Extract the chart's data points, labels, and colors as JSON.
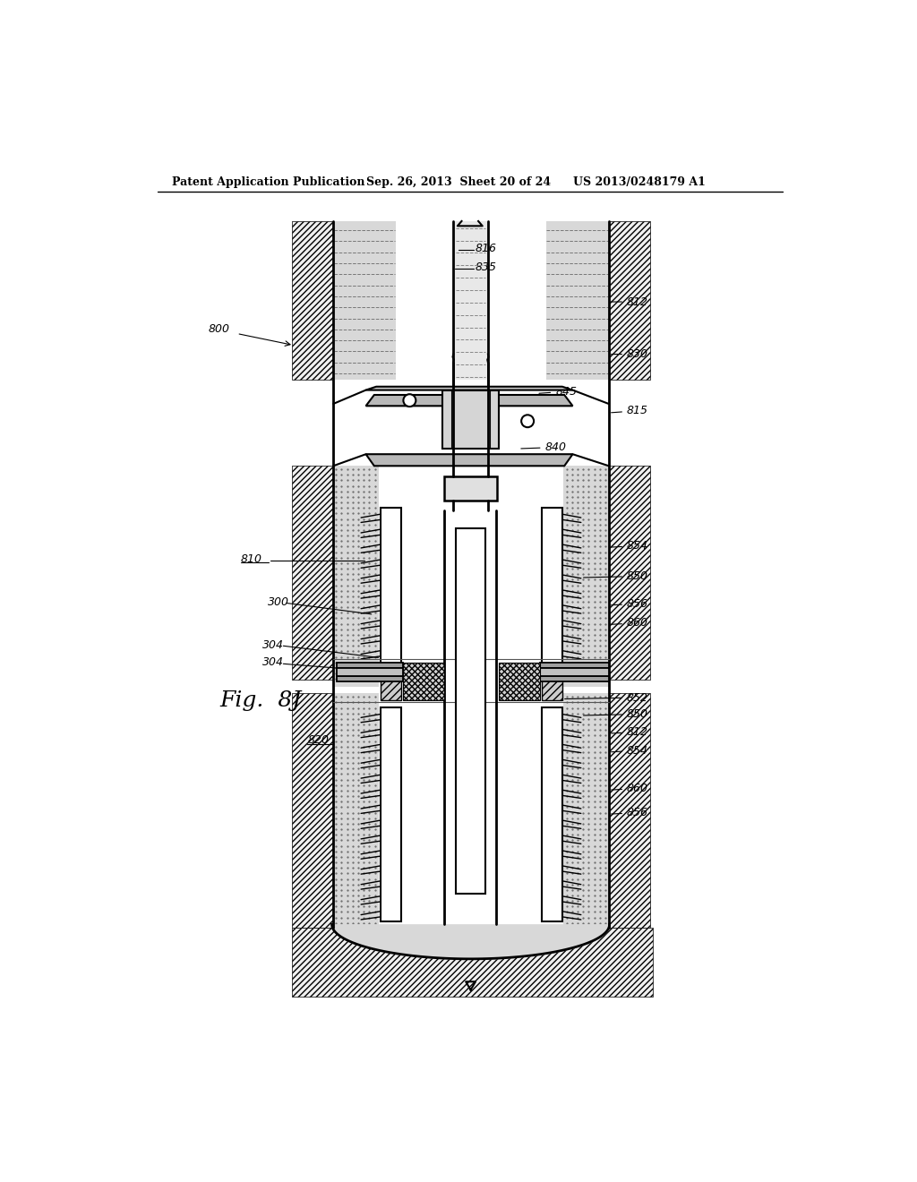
{
  "bg_color": "#ffffff",
  "header_left": "Patent Application Publication",
  "header_mid": "Sep. 26, 2013  Sheet 20 of 24",
  "header_right": "US 2013/0248179 A1",
  "fig_label": "Fig.  8J",
  "label_800": "800",
  "label_810": "810",
  "label_820": "820",
  "label_300": "300",
  "label_304a": "304",
  "label_304b": "304",
  "label_816": "816",
  "label_835": "835",
  "label_812a": "812",
  "label_812b": "812",
  "label_830": "830",
  "label_845": "845",
  "label_815": "815",
  "label_840": "840",
  "label_854a": "854",
  "label_850a": "850",
  "label_856a": "856",
  "label_860a": "860",
  "label_852": "852",
  "label_850b": "850",
  "label_854b": "854",
  "label_860b": "860",
  "label_856b": "856"
}
